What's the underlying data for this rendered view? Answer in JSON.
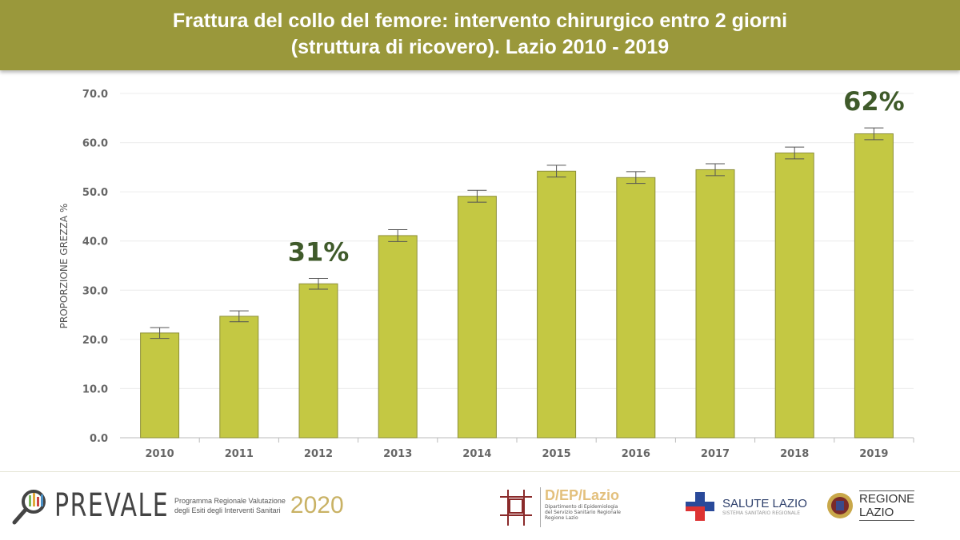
{
  "header": {
    "title_line1": "Frattura del collo del femore: intervento chirurgico entro 2 giorni",
    "title_line2": "(struttura di ricovero). Lazio 2010 - 2019"
  },
  "chart_data": {
    "type": "bar",
    "title": "Frattura del collo del femore: intervento chirurgico entro 2 giorni (struttura di ricovero). Lazio 2010 - 2019",
    "xlabel": "",
    "ylabel": "PROPORZIONE GREZZA %",
    "ylim": [
      0,
      70
    ],
    "yticks": [
      "0.0",
      "10.0",
      "20.0",
      "30.0",
      "40.0",
      "50.0",
      "60.0",
      "70.0"
    ],
    "grid": true,
    "categories": [
      "2010",
      "2011",
      "2012",
      "2013",
      "2014",
      "2015",
      "2016",
      "2017",
      "2018",
      "2019"
    ],
    "values": [
      21.3,
      24.7,
      31.3,
      41.1,
      49.1,
      54.2,
      52.9,
      54.5,
      57.9,
      61.8
    ],
    "error": [
      1.1,
      1.1,
      1.1,
      1.2,
      1.2,
      1.2,
      1.2,
      1.2,
      1.2,
      1.2
    ],
    "bar_color": "#c4c843",
    "annotations": [
      {
        "category": "2012",
        "text": "31%"
      },
      {
        "category": "2019",
        "text": "62%"
      }
    ],
    "annotation_color": "#3f5a2a"
  },
  "footer": {
    "prevale": {
      "name": "PREVALE",
      "line1": "Programma Regionale Valutazione",
      "line2": "degli Esiti degli Interventi Sanitari",
      "year": "2020"
    },
    "dep": {
      "name": "D/EP/Lazio",
      "line1": "Dipartimento di Epidemiologia",
      "line2": "del Servizio Sanitario Regionale",
      "line3": "Regione Lazio"
    },
    "salute": {
      "name": "SALUTE LAZIO",
      "sub": "SISTEMA SANITARIO REGIONALE"
    },
    "regione": {
      "line1": "REGIONE",
      "line2": "LAZIO"
    }
  }
}
